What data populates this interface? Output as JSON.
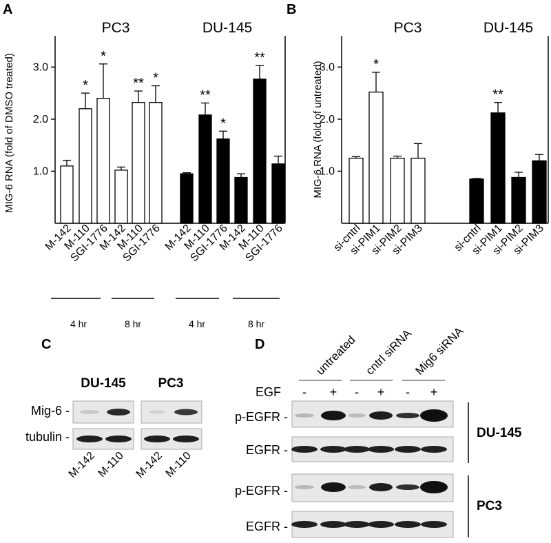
{
  "panel_letters": {
    "a": "A",
    "b": "B",
    "c": "C",
    "d": "D"
  },
  "chart_data": [
    {
      "type": "bar",
      "panel": "A",
      "ylabel": "MIG-6 RNA (fold of DMSO treated)",
      "ylim": [
        0,
        3.6
      ],
      "yticks": [
        "1.0",
        "2.0",
        "3.0"
      ],
      "group_labels": [
        "PC3",
        "DU-145"
      ],
      "categories": [
        "M-142",
        "M-110",
        "SGI-1776",
        "M-142",
        "M-110",
        "SGI-1776",
        "M-142",
        "M-110",
        "SGI-1776",
        "M-142",
        "M-110",
        "SGI-1776"
      ],
      "values": [
        1.1,
        2.2,
        2.4,
        1.02,
        2.32,
        2.32,
        0.95,
        2.08,
        1.62,
        0.88,
        2.77,
        1.14
      ],
      "errors": [
        0.11,
        0.3,
        0.66,
        0.06,
        0.22,
        0.32,
        0.02,
        0.23,
        0.15,
        0.07,
        0.26,
        0.15
      ],
      "significance": [
        "",
        "*",
        "*",
        "",
        "**",
        "*",
        "",
        "**",
        "*",
        "",
        "**",
        ""
      ],
      "fill": [
        "open",
        "open",
        "open",
        "open",
        "open",
        "open",
        "filled",
        "filled",
        "filled",
        "filled",
        "filled",
        "filled"
      ],
      "time_labels": [
        "4 hr",
        "8 hr",
        "4 hr",
        "8 hr"
      ],
      "grid": false
    },
    {
      "type": "bar",
      "panel": "B",
      "ylabel": "MIG-6 RNA (fold of untreated)",
      "ylim": [
        0,
        3.6
      ],
      "yticks": [
        "1.0",
        "2.0",
        "3.0"
      ],
      "group_labels": [
        "PC3",
        "DU-145"
      ],
      "categories": [
        "si-cntrl",
        "si-PIM1",
        "si-PIM2",
        "si-PIM3",
        "si-cntrl",
        "si-PIM1",
        "si-PIM2",
        "si-PIM3"
      ],
      "values": [
        1.25,
        2.52,
        1.25,
        1.25,
        0.85,
        2.12,
        0.88,
        1.2
      ],
      "errors": [
        0.03,
        0.38,
        0.04,
        0.28,
        0.01,
        0.2,
        0.1,
        0.12
      ],
      "significance": [
        "",
        "*",
        "",
        "",
        "",
        "**",
        "",
        ""
      ],
      "fill": [
        "open",
        "open",
        "open",
        "open",
        "filled",
        "filled",
        "filled",
        "filled"
      ],
      "grid": false
    }
  ],
  "blot_c": {
    "titles": [
      "DU-145",
      "PC3"
    ],
    "rows": [
      "Mig-6 -",
      "tubulin -"
    ],
    "lanes": [
      "M-142",
      "M-110",
      "M-142",
      "M-110"
    ]
  },
  "blot_d": {
    "conditions": [
      "untreated",
      "cntrl siRNA",
      "Mig6 siRNA"
    ],
    "egf_label": "EGF",
    "egf_marks": [
      "-",
      "+",
      "-",
      "+",
      "-",
      "+"
    ],
    "rows": [
      "p-EGFR -",
      "EGFR -",
      "p-EGFR -",
      "EGFR -"
    ],
    "cell_lines": [
      "DU-145",
      "PC3"
    ]
  },
  "colors": {
    "bar_filled": "#000000",
    "bar_open": "#ffffff",
    "axis": "#000000",
    "blot_bg": "#e6e6e6",
    "band": "#1a1a1a"
  }
}
